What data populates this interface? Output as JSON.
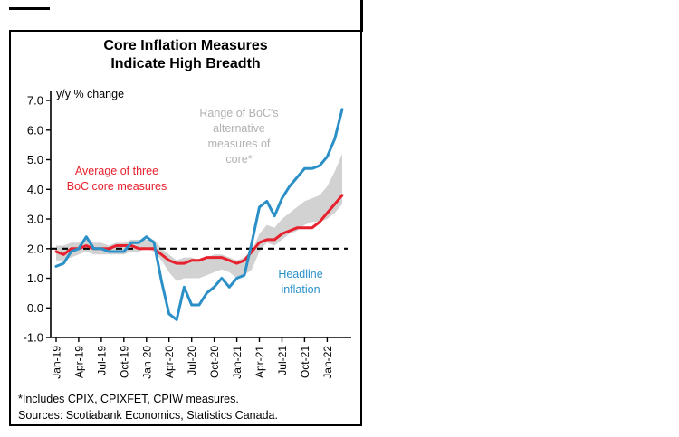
{
  "chart": {
    "title": "Core Inflation Measures\nIndicate High Breadth",
    "units_note": "y/y % change",
    "annotations": {
      "range_label": "Range of BoC's\nalternative\nmeasures of\ncore*",
      "core_label": "Average of three\nBoC core measures",
      "headline_label": "Headline\ninflation"
    },
    "footnote1": "*Includes CPIX, CPIXFET, CPIW measures.",
    "footnote2": "Sources: Scotiabank Economics, Statistics Canada."
  },
  "colors": {
    "headline_blue": "#2b90c8",
    "core_red": "#e8212e",
    "band_gray": "#d2d2d2",
    "target_dash": "#000000"
  },
  "chart_data": {
    "type": "line",
    "title": "Core Inflation Measures Indicate High Breadth",
    "ylabel": "y/y % change",
    "ylim": [
      -1.0,
      7.0
    ],
    "y_tick_step": 1.0,
    "grid": false,
    "n_points": 39,
    "x_tick_labels": [
      "Jan-19",
      "Apr-19",
      "Jul-19",
      "Oct-19",
      "Jan-20",
      "Apr-20",
      "Jul-20",
      "Oct-20",
      "Jan-21",
      "Apr-21",
      "Jul-21",
      "Oct-21",
      "Jan-22"
    ],
    "x_tick_indices": [
      0,
      3,
      6,
      9,
      12,
      15,
      18,
      21,
      24,
      27,
      30,
      33,
      36
    ],
    "target_line": 2.0,
    "series": [
      {
        "name": "Headline inflation",
        "color": "#2b90c8",
        "values": [
          1.4,
          1.5,
          1.9,
          2.0,
          2.4,
          2.0,
          2.0,
          1.9,
          1.9,
          1.9,
          2.2,
          2.2,
          2.4,
          2.2,
          0.9,
          -0.2,
          -0.4,
          0.7,
          0.1,
          0.1,
          0.5,
          0.7,
          1.0,
          0.7,
          1.0,
          1.1,
          2.2,
          3.4,
          3.6,
          3.1,
          3.7,
          4.1,
          4.4,
          4.7,
          4.7,
          4.8,
          5.1,
          5.7,
          6.7
        ]
      },
      {
        "name": "Average of three BoC core measures",
        "color": "#e8212e",
        "values": [
          1.9,
          1.8,
          2.0,
          2.0,
          2.1,
          2.0,
          2.0,
          2.0,
          2.1,
          2.1,
          2.1,
          2.0,
          2.0,
          2.0,
          1.8,
          1.6,
          1.5,
          1.5,
          1.6,
          1.6,
          1.7,
          1.7,
          1.7,
          1.6,
          1.5,
          1.6,
          1.9,
          2.2,
          2.3,
          2.3,
          2.5,
          2.6,
          2.7,
          2.7,
          2.7,
          2.9,
          3.2,
          3.5,
          3.8
        ]
      }
    ],
    "band": {
      "name": "Range of BoC's alternative measures of core (CPIX, CPIXFET, CPIW)",
      "color": "#d2d2d2",
      "low": [
        1.6,
        1.6,
        1.7,
        1.8,
        1.9,
        1.8,
        1.8,
        1.8,
        1.8,
        1.8,
        1.9,
        1.9,
        2.0,
        1.9,
        1.6,
        1.2,
        0.9,
        1.0,
        1.0,
        1.0,
        1.1,
        1.2,
        1.3,
        1.2,
        1.0,
        1.1,
        1.3,
        1.9,
        2.2,
        2.1,
        2.3,
        2.5,
        2.6,
        2.8,
        2.9,
        2.9,
        3.0,
        3.2,
        3.5
      ],
      "high": [
        2.1,
        2.1,
        2.2,
        2.2,
        2.3,
        2.2,
        2.2,
        2.1,
        2.2,
        2.2,
        2.3,
        2.3,
        2.3,
        2.3,
        2.0,
        1.8,
        1.6,
        1.7,
        1.7,
        1.6,
        1.7,
        1.8,
        1.8,
        1.7,
        1.6,
        1.7,
        1.9,
        2.5,
        2.8,
        2.7,
        3.0,
        3.2,
        3.4,
        3.6,
        3.7,
        3.8,
        4.1,
        4.6,
        5.2
      ]
    }
  }
}
